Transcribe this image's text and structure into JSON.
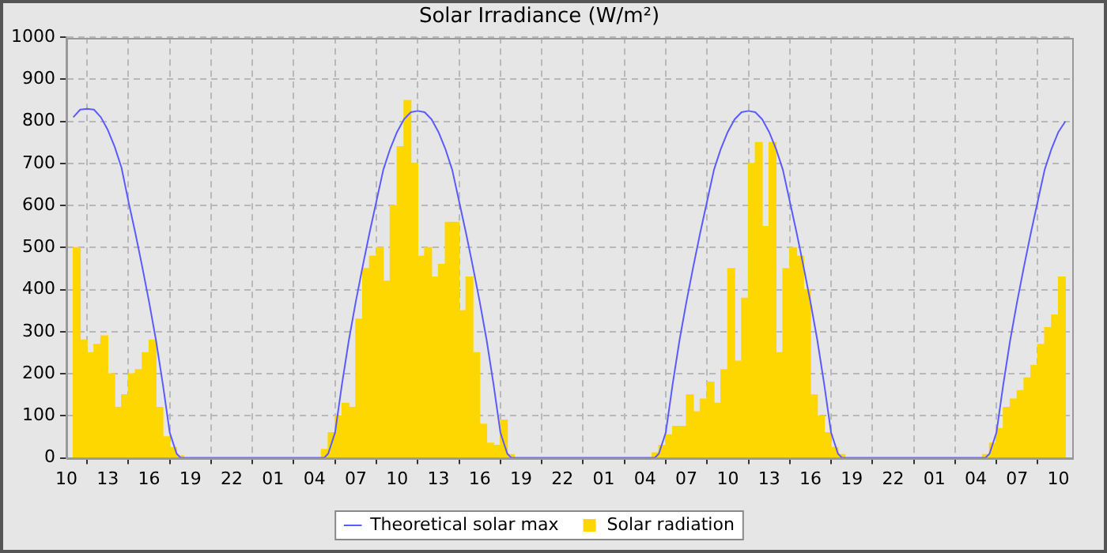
{
  "chart_data": {
    "type": "bar",
    "title": "Solar Irradiance (W/m²)",
    "xlim": [
      "--01-01T10:00",
      "--01-04T11:00"
    ],
    "xticks": [
      {
        "value": "--01-01T10:00",
        "label": "10"
      },
      {
        "value": "--01-01T13:00",
        "label": "13"
      },
      {
        "value": "--01-01T16:00",
        "label": "16"
      },
      {
        "value": "--01-01T19:00",
        "label": "19"
      },
      {
        "value": "--01-01T22:00",
        "label": "22"
      },
      {
        "value": "--01-02T01:00",
        "label": "01"
      },
      {
        "value": "--01-02T04:00",
        "label": "04"
      },
      {
        "value": "--01-02T07:00",
        "label": "07"
      },
      {
        "value": "--01-02T10:00",
        "label": "10"
      },
      {
        "value": "--01-02T13:00",
        "label": "13"
      },
      {
        "value": "--01-02T16:00",
        "label": "16"
      },
      {
        "value": "--01-02T19:00",
        "label": "19"
      },
      {
        "value": "--01-02T22:00",
        "label": "22"
      },
      {
        "value": "--01-03T01:00",
        "label": "01"
      },
      {
        "value": "--01-03T04:00",
        "label": "04"
      },
      {
        "value": "--01-03T07:00",
        "label": "07"
      },
      {
        "value": "--01-03T10:00",
        "label": "10"
      },
      {
        "value": "--01-03T13:00",
        "label": "13"
      },
      {
        "value": "--01-03T16:00",
        "label": "16"
      },
      {
        "value": "--01-03T19:00",
        "label": "19"
      },
      {
        "value": "--01-03T22:00",
        "label": "22"
      },
      {
        "value": "--01-04T01:00",
        "label": "01"
      },
      {
        "value": "--01-04T04:00",
        "label": "04"
      },
      {
        "value": "--01-04T07:00",
        "label": "07"
      },
      {
        "value": "--01-04T10:00",
        "label": "10"
      }
    ],
    "ylim": [
      0,
      1000
    ],
    "yticks": [
      0,
      100,
      200,
      300,
      400,
      500,
      600,
      700,
      800,
      900,
      1000
    ],
    "grid": true,
    "legend": "bottom",
    "series": [
      {
        "name": "Theoretical solar max",
        "type": "line",
        "color": "#5a5aff",
        "x": [
          "--01-01T10:30",
          "--01-01T11:00",
          "--01-01T11:30",
          "--01-01T12:00",
          "--01-01T12:30",
          "--01-01T13:00",
          "--01-01T13:30",
          "--01-01T14:00",
          "--01-01T14:30",
          "--01-01T15:00",
          "--01-01T15:30",
          "--01-01T16:00",
          "--01-01T16:30",
          "--01-01T17:00",
          "--01-01T17:30",
          "--01-01T18:00",
          "--01-01T18:18",
          "--01-02T04:42",
          "--01-02T05:00",
          "--01-02T05:30",
          "--01-02T06:00",
          "--01-02T06:30",
          "--01-02T07:00",
          "--01-02T07:30",
          "--01-02T08:00",
          "--01-02T08:30",
          "--01-02T09:00",
          "--01-02T09:30",
          "--01-02T10:00",
          "--01-02T10:30",
          "--01-02T11:00",
          "--01-02T11:30",
          "--01-02T12:00",
          "--01-02T12:30",
          "--01-02T13:00",
          "--01-02T13:30",
          "--01-02T14:00",
          "--01-02T14:30",
          "--01-02T15:00",
          "--01-02T15:30",
          "--01-02T16:00",
          "--01-02T16:30",
          "--01-02T17:00",
          "--01-02T17:30",
          "--01-02T18:00",
          "--01-02T18:18",
          "--01-03T04:42",
          "--01-03T05:00",
          "--01-03T05:30",
          "--01-03T06:00",
          "--01-03T06:30",
          "--01-03T07:00",
          "--01-03T07:30",
          "--01-03T08:00",
          "--01-03T08:30",
          "--01-03T09:00",
          "--01-03T09:30",
          "--01-03T10:00",
          "--01-03T10:30",
          "--01-03T11:00",
          "--01-03T11:30",
          "--01-03T12:00",
          "--01-03T12:30",
          "--01-03T13:00",
          "--01-03T13:30",
          "--01-03T14:00",
          "--01-03T14:30",
          "--01-03T15:00",
          "--01-03T15:30",
          "--01-03T16:00",
          "--01-03T16:30",
          "--01-03T17:00",
          "--01-03T17:30",
          "--01-03T18:00",
          "--01-03T18:18",
          "--01-04T04:42",
          "--01-04T05:00",
          "--01-04T05:30",
          "--01-04T06:00",
          "--01-04T06:30",
          "--01-04T07:00",
          "--01-04T07:30",
          "--01-04T08:00",
          "--01-04T08:30",
          "--01-04T09:00",
          "--01-04T09:30",
          "--01-04T10:00",
          "--01-04T10:30"
        ],
        "values": [
          810,
          828,
          830,
          828,
          810,
          780,
          740,
          690,
          610,
          535,
          455,
          371,
          280,
          175,
          60,
          10,
          0,
          0,
          10,
          60,
          175,
          280,
          371,
          455,
          535,
          610,
          685,
          735,
          775,
          805,
          822,
          825,
          822,
          805,
          775,
          735,
          685,
          610,
          535,
          455,
          371,
          280,
          175,
          60,
          10,
          0,
          0,
          10,
          60,
          175,
          280,
          371,
          455,
          535,
          610,
          685,
          735,
          775,
          805,
          822,
          825,
          822,
          805,
          775,
          735,
          685,
          610,
          535,
          455,
          371,
          280,
          175,
          60,
          10,
          0,
          0,
          10,
          60,
          175,
          280,
          371,
          455,
          535,
          610,
          685,
          735,
          775,
          800
        ]
      },
      {
        "name": "Solar radiation",
        "color": "#ffd700",
        "x": [
          "--01-01T10:45",
          "--01-01T11:15",
          "--01-01T11:45",
          "--01-01T12:15",
          "--01-01T12:45",
          "--01-01T13:15",
          "--01-01T13:45",
          "--01-01T14:15",
          "--01-01T14:45",
          "--01-01T15:15",
          "--01-01T15:45",
          "--01-01T16:15",
          "--01-01T16:45",
          "--01-01T17:15",
          "--01-01T17:45",
          "--01-01T18:15",
          "--01-02T04:45",
          "--01-02T05:15",
          "--01-02T05:45",
          "--01-02T06:15",
          "--01-02T06:45",
          "--01-02T07:15",
          "--01-02T07:45",
          "--01-02T08:15",
          "--01-02T08:45",
          "--01-02T09:15",
          "--01-02T09:45",
          "--01-02T10:15",
          "--01-02T10:45",
          "--01-02T11:15",
          "--01-02T11:45",
          "--01-02T12:15",
          "--01-02T12:45",
          "--01-02T13:15",
          "--01-02T13:45",
          "--01-02T14:15",
          "--01-02T14:45",
          "--01-02T15:15",
          "--01-02T15:45",
          "--01-02T16:15",
          "--01-02T16:45",
          "--01-02T17:15",
          "--01-02T17:45",
          "--01-02T18:15",
          "--01-03T04:45",
          "--01-03T05:15",
          "--01-03T05:45",
          "--01-03T06:15",
          "--01-03T06:45",
          "--01-03T07:15",
          "--01-03T07:45",
          "--01-03T08:15",
          "--01-03T08:45",
          "--01-03T09:15",
          "--01-03T09:45",
          "--01-03T10:15",
          "--01-03T10:45",
          "--01-03T11:15",
          "--01-03T11:45",
          "--01-03T12:15",
          "--01-03T12:45",
          "--01-03T13:15",
          "--01-03T13:45",
          "--01-03T14:15",
          "--01-03T14:45",
          "--01-03T15:15",
          "--01-03T15:45",
          "--01-03T16:15",
          "--01-03T16:45",
          "--01-03T17:15",
          "--01-03T17:45",
          "--01-03T18:15",
          "--01-04T04:45",
          "--01-04T05:15",
          "--01-04T05:45",
          "--01-04T06:15",
          "--01-04T06:45",
          "--01-04T07:15",
          "--01-04T07:45",
          "--01-04T08:15",
          "--01-04T08:45",
          "--01-04T09:15",
          "--01-04T09:45",
          "--01-04T10:15"
        ],
        "values": [
          500,
          280,
          250,
          270,
          290,
          200,
          120,
          150,
          200,
          210,
          250,
          280,
          120,
          50,
          25,
          5,
          20,
          60,
          100,
          130,
          120,
          330,
          450,
          480,
          500,
          420,
          600,
          740,
          850,
          700,
          480,
          500,
          430,
          460,
          560,
          560,
          350,
          430,
          250,
          80,
          35,
          30,
          90,
          8,
          12,
          30,
          55,
          75,
          75,
          150,
          110,
          140,
          180,
          130,
          210,
          450,
          230,
          380,
          700,
          750,
          550,
          750,
          250,
          450,
          500,
          480,
          400,
          150,
          100,
          60,
          25,
          8,
          8,
          35,
          70,
          120,
          140,
          160,
          190,
          220,
          270,
          310,
          340,
          430
        ]
      }
    ]
  }
}
